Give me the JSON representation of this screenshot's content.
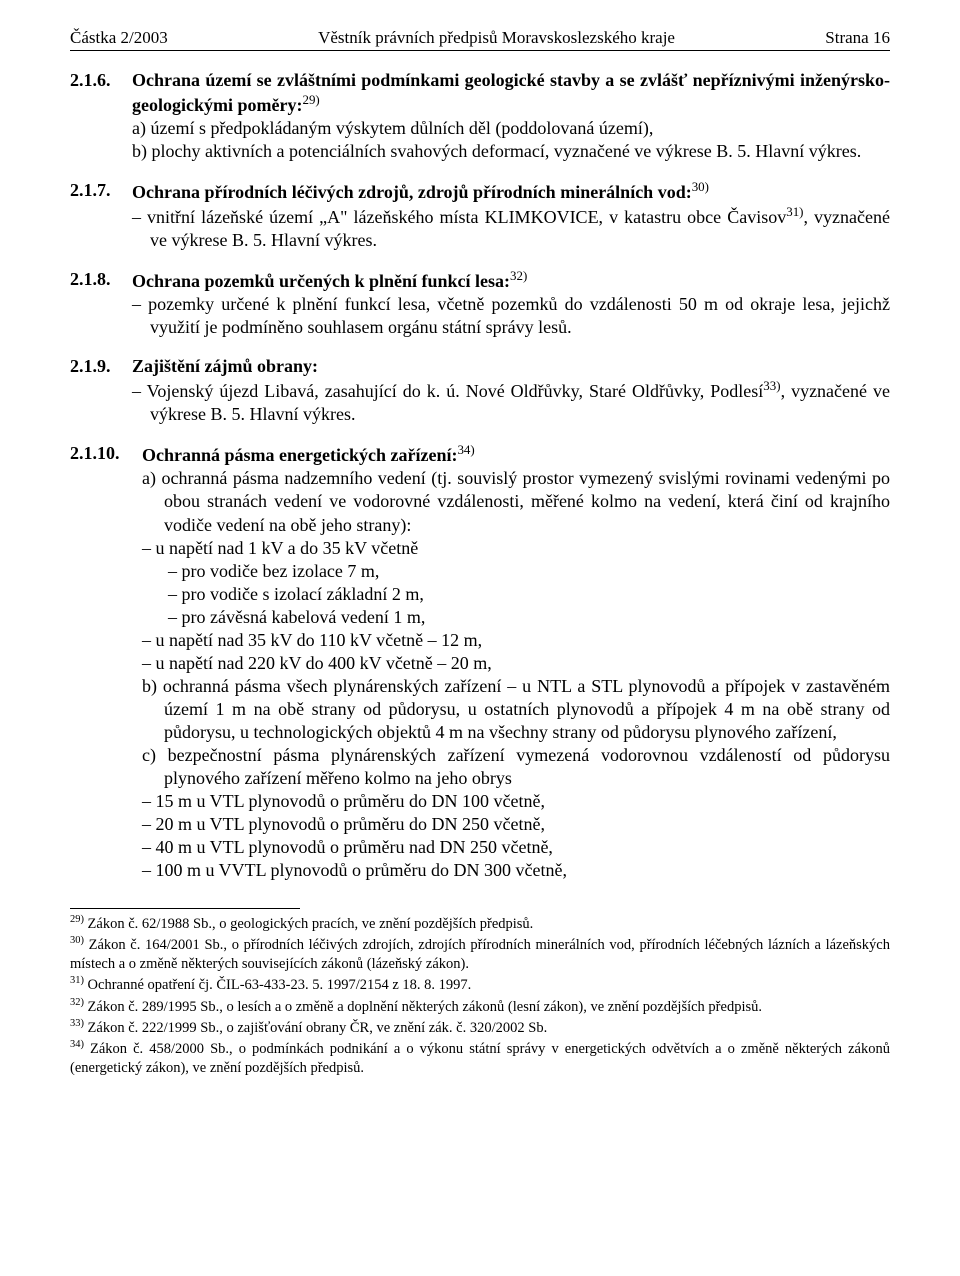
{
  "header": {
    "left": "Částka 2/2003",
    "center": "Věstník právních předpisů Moravskoslezského kraje",
    "right": "Strana 16"
  },
  "s216": {
    "num": "2.1.6.",
    "title": "Ochrana území se zvláštními podmínkami geologické stavby a se zvlášť nepříznivými inženýrsko-geologickými poměry:",
    "sup": "29)",
    "a": "a) území s předpokládaným výskytem důlních děl (poddolovaná území),",
    "b": "b) plochy aktivních a potenciálních svahových deformací, vyznačené ve výkrese B. 5. Hlavní výkres."
  },
  "s217": {
    "num": "2.1.7.",
    "title": "Ochrana přírodních léčivých zdrojů, zdrojů přírodních minerálních vod:",
    "sup": "30)",
    "d1a": "– vnitřní lázeňské území „A\" lázeňského místa KLIMKOVICE, v katastru obce Čavisov",
    "d1sup": "31)",
    "d1b": ", vyznačené ve výkrese B. 5. Hlavní výkres."
  },
  "s218": {
    "num": "2.1.8.",
    "title": "Ochrana pozemků určených k plnění funkcí lesa:",
    "sup": "32)",
    "d1": "– pozemky určené k plnění funkcí lesa, včetně pozemků do vzdálenosti 50 m od okraje lesa, jejichž využití je podmíněno souhlasem orgánu státní správy lesů."
  },
  "s219": {
    "num": "2.1.9.",
    "title": "Zajištění zájmů obrany:",
    "d1a": "– Vojenský újezd Libavá, zasahující do k. ú. Nové Oldřůvky, Staré Oldřůvky, Podlesí",
    "d1sup": "33)",
    "d1b": ", vyznačené ve výkrese B. 5. Hlavní výkres."
  },
  "s2110": {
    "num": "2.1.10.",
    "title": "Ochranná pásma energetických zařízení:",
    "sup": "34)",
    "a": "a) ochranná pásma nadzemního vedení (tj. souvislý prostor vymezený svislými rovinami vedenými po obou stranách vedení ve vodorovné vzdálenosti, měřené kolmo na vedení, která činí od krajního vodiče vedení na obě jeho strany):",
    "a_d1": "– u napětí nad 1 kV a do 35 kV včetně",
    "a_d1_1": "– pro vodiče bez izolace 7 m,",
    "a_d1_2": "– pro vodiče s izolací základní 2 m,",
    "a_d1_3": "– pro závěsná kabelová vedení 1 m,",
    "a_d2": "– u napětí nad 35 kV do 110 kV včetně – 12 m,",
    "a_d3": "– u napětí nad 220 kV do 400 kV včetně – 20 m,",
    "b": "b) ochranná pásma všech plynárenských zařízení – u NTL a STL plynovodů a přípojek v zastavěném území 1 m na obě strany od půdorysu, u ostatních plynovodů a přípojek 4 m na obě strany od půdorysu, u technologických objektů 4 m na všechny strany od půdorysu plynového zařízení,",
    "c": "c) bezpečnostní pásma plynárenských zařízení vymezená vodorovnou vzdáleností od půdorysu plynového zařízení měřeno kolmo na jeho obrys",
    "c_d1": "– 15 m u VTL plynovodů o průměru do DN 100 včetně,",
    "c_d2": "– 20 m u VTL plynovodů o průměru do DN 250 včetně,",
    "c_d3": "– 40 m u VTL plynovodů o průměru nad DN 250 včetně,",
    "c_d4": "– 100 m u VVTL plynovodů o průměru do DN 300 včetně,"
  },
  "footnotes": {
    "f29": {
      "sup": "29)",
      "text": " Zákon č. 62/1988 Sb., o geologických pracích, ve znění pozdějších předpisů."
    },
    "f30": {
      "sup": "30)",
      "text": " Zákon č. 164/2001 Sb., o přírodních léčivých zdrojích, zdrojích přírodních minerálních vod, přírodních léčebných lázních a lázeňských místech a o změně některých souvisejících zákonů (lázeňský zákon)."
    },
    "f31": {
      "sup": "31)",
      "text": " Ochranné opatření čj. ČIL-63-433-23. 5. 1997/2154 z 18. 8. 1997."
    },
    "f32": {
      "sup": "32)",
      "text": " Zákon č. 289/1995 Sb., o lesích a o změně a doplnění některých zákonů (lesní zákon), ve znění pozdějších předpisů."
    },
    "f33": {
      "sup": "33)",
      "text": " Zákon č. 222/1999 Sb., o zajišťování obrany ČR, ve znění zák. č. 320/2002 Sb."
    },
    "f34": {
      "sup": "34)",
      "text": " Zákon č. 458/2000 Sb., o podmínkách podnikání a o výkonu státní správy v energetických odvětvích a o změně některých zákonů (energetický zákon), ve znění pozdějších předpisů."
    }
  }
}
